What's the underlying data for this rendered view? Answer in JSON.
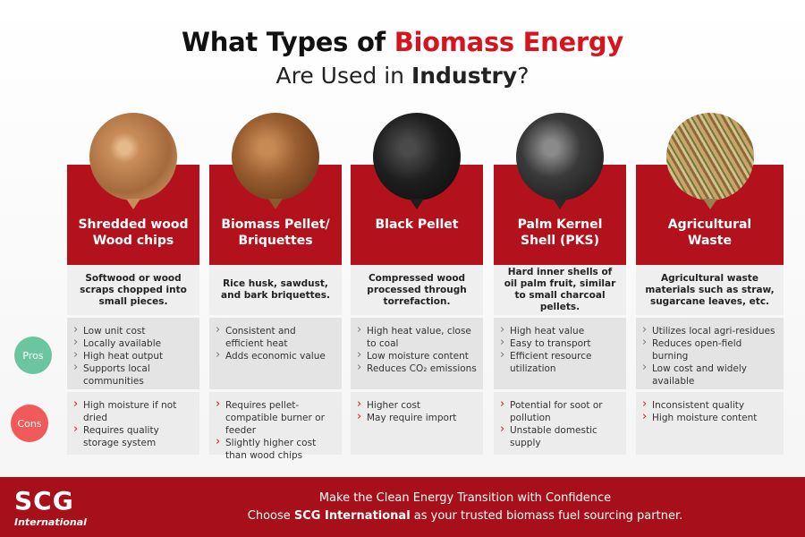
{
  "header": {
    "title_prefix": "What Types of ",
    "title_highlight": "Biomass Energy",
    "subtitle_prefix": "Are Used in ",
    "subtitle_bold": "Industry",
    "subtitle_suffix": "?"
  },
  "labels": {
    "pros": "Pros",
    "cons": "Cons"
  },
  "columns": [
    {
      "name": "Shredded wood\nWood chips",
      "description": "Softwood or wood scraps chopped into small pieces.",
      "pros": [
        "Low unit cost",
        "Locally available",
        "High heat output",
        "Supports local communities"
      ],
      "cons": [
        "High moisture if not dried",
        "Requires quality storage system"
      ]
    },
    {
      "name": "Biomass Pellet/\nBriquettes",
      "description": "Rice husk, sawdust, and bark briquettes.",
      "pros": [
        "Consistent and efficient heat",
        "Adds economic value"
      ],
      "cons": [
        "Requires pellet-compatible burner or feeder",
        "Slightly higher cost than wood chips"
      ]
    },
    {
      "name": "Black Pellet",
      "description": "Compressed wood processed through torrefaction.",
      "pros": [
        "High heat value, close to coal",
        "Low moisture content",
        "Reduces CO₂ emissions"
      ],
      "cons": [
        "Higher cost",
        "May require import"
      ]
    },
    {
      "name": "Palm Kernel\nShell (PKS)",
      "description": "Hard inner shells of oil palm fruit, similar to small charcoal pellets.",
      "pros": [
        "High heat value",
        "Easy to transport",
        "Efficient resource utilization"
      ],
      "cons": [
        "Potential for soot or pollution",
        "Unstable domestic supply"
      ]
    },
    {
      "name": "Agricultural\nWaste",
      "description": "Agricultural waste materials such as straw, sugarcane leaves, etc.",
      "pros": [
        "Utilizes local agri-residues",
        "Reduces open-field burning",
        "Low cost and widely available"
      ],
      "cons": [
        "Inconsistent quality",
        "High moisture content"
      ]
    }
  ],
  "footer": {
    "logo": "SCG",
    "logo_sub": "International",
    "line1": "Make the Clean Energy Transition with Confidence",
    "line2_prefix": "Choose ",
    "line2_bold": "SCG International",
    "line2_suffix": " as your trusted biomass fuel sourcing partner."
  }
}
